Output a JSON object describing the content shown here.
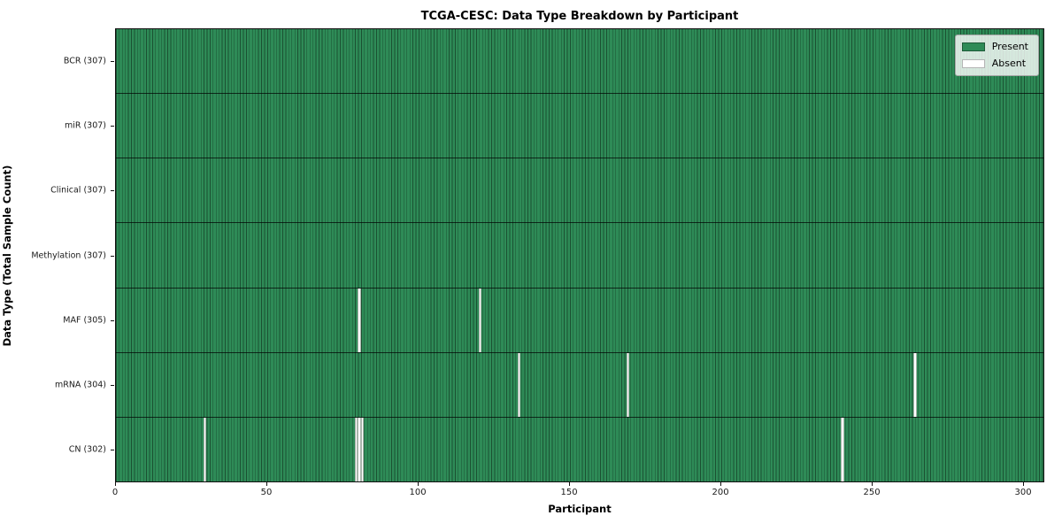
{
  "chart_data": {
    "type": "heatmap",
    "title": "TCGA-CESC: Data Type Breakdown by Participant",
    "xlabel": "Participant",
    "ylabel": "Data Type (Total Sample Count)",
    "x_ticks": [
      0,
      50,
      100,
      150,
      200,
      250,
      300
    ],
    "x_range": [
      0,
      307
    ],
    "n_participants": 307,
    "grid": "cell-edges",
    "colors": {
      "present": "#2e8b57",
      "absent": "#ffffff",
      "cell_edge": "rgba(0,0,0,0.42)",
      "row_edge": "rgba(0,0,0,0.7)"
    },
    "legend": {
      "position": "upper right",
      "entries": [
        {
          "label": "Present",
          "color": "#2e8b57"
        },
        {
          "label": "Absent",
          "color": "#ffffff"
        }
      ]
    },
    "rows": [
      {
        "data_type": "BCR",
        "total": 307,
        "label": "BCR (307)",
        "absent_participants": []
      },
      {
        "data_type": "miR",
        "total": 307,
        "label": "miR (307)",
        "absent_participants": []
      },
      {
        "data_type": "Clinical",
        "total": 307,
        "label": "Clinical (307)",
        "absent_participants": []
      },
      {
        "data_type": "Methylation",
        "total": 307,
        "label": "Methylation (307)",
        "absent_participants": []
      },
      {
        "data_type": "MAF",
        "total": 305,
        "label": "MAF (305)",
        "absent_participants": [
          80,
          120
        ]
      },
      {
        "data_type": "mRNA",
        "total": 304,
        "label": "mRNA (304)",
        "absent_participants": [
          133,
          169,
          264
        ]
      },
      {
        "data_type": "CN",
        "total": 302,
        "label": "CN (302)",
        "absent_participants": [
          29,
          79,
          80,
          81,
          240
        ]
      }
    ]
  }
}
